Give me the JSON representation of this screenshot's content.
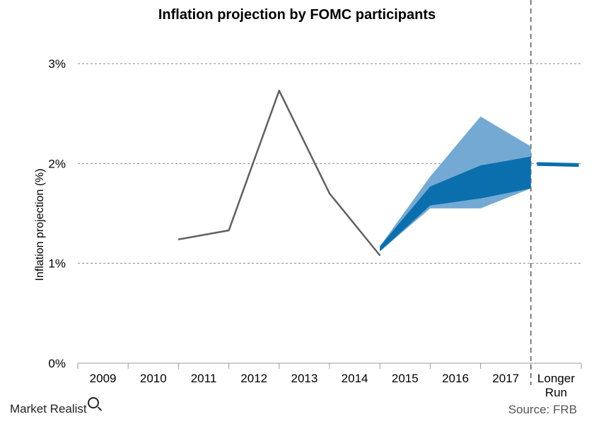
{
  "title": "Inflation  projection  by  FOMC  participants",
  "brand": "Market Realist",
  "source": "Source: FRB",
  "colors": {
    "band_outer": "#74a9d4",
    "band_inner": "#0b6fad",
    "line": "#606060",
    "grid": "#888888"
  },
  "chart_data": {
    "type": "line",
    "title": "Inflation  projection  by  FOMC  participants",
    "xlabel": "",
    "ylabel": "Inflation projection (%)",
    "categories": [
      "2009",
      "2010",
      "2011",
      "2012",
      "2013",
      "2014",
      "2015",
      "2016",
      "2017",
      "Longer Run"
    ],
    "y_ticks": [
      "0%",
      "1%",
      "2%",
      "3%"
    ],
    "ylim": [
      0,
      3
    ],
    "grid": true,
    "series": [
      {
        "kind": "line",
        "x": [
          "2010",
          "2011",
          "2012",
          "2013",
          "2014"
        ],
        "values": [
          1.24,
          1.33,
          2.73,
          1.7,
          1.08
        ]
      }
    ],
    "bands": [
      {
        "kind": "range",
        "x": [
          "2014",
          "2015",
          "2016",
          "2017"
        ],
        "low": [
          1.12,
          1.55,
          1.55,
          1.75
        ],
        "high": [
          1.17,
          1.87,
          2.47,
          2.17
        ]
      },
      {
        "kind": "central_tendency",
        "x": [
          "2014",
          "2015",
          "2016",
          "2017"
        ],
        "low": [
          1.12,
          1.58,
          1.65,
          1.75
        ],
        "high": [
          1.17,
          1.77,
          1.98,
          2.07
        ]
      }
    ],
    "longer_run": {
      "low": 1.98,
      "high": 2.01
    }
  }
}
